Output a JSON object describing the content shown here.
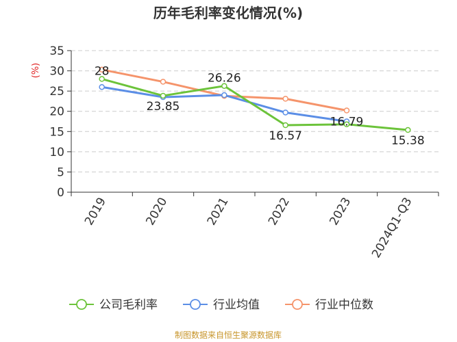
{
  "chart_data": {
    "type": "line",
    "title": "历年毛利率变化情况(%)",
    "ylabel": "(%)",
    "xlabel": "",
    "categories": [
      "2019",
      "2020",
      "2021",
      "2022",
      "2023",
      "2024Q1-Q3"
    ],
    "yticks": [
      0,
      5,
      10,
      15,
      20,
      25,
      30,
      35
    ],
    "ylim": [
      0,
      35
    ],
    "grid": true,
    "legend_position": "bottom",
    "series": [
      {
        "name": "公司毛利率",
        "color": "#6cc33a",
        "values": [
          28,
          23.85,
          26.26,
          16.57,
          16.79,
          15.38
        ],
        "labels": [
          "28",
          "23.85",
          "26.26",
          "16.57",
          "16.79",
          "15.38"
        ]
      },
      {
        "name": "行业均值",
        "color": "#5b8ee6",
        "values": [
          26.0,
          23.5,
          24.0,
          19.7,
          17.5,
          null
        ]
      },
      {
        "name": "行业中位数",
        "color": "#f5946b",
        "values": [
          30.3,
          27.3,
          23.8,
          23.1,
          20.2,
          null
        ]
      }
    ]
  },
  "source": "制图数据来自恒生聚源数据库"
}
